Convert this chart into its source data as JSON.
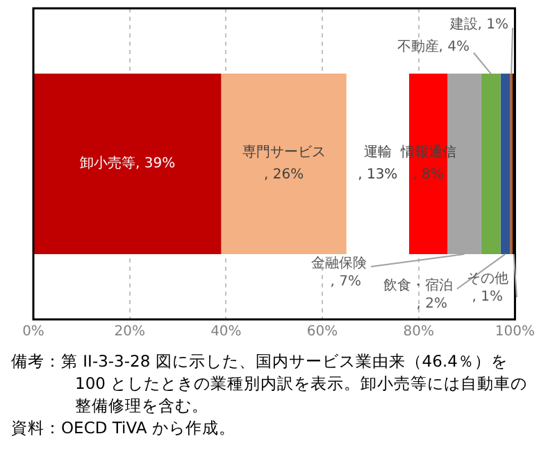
{
  "chart_data": {
    "type": "bar",
    "orientation": "horizontal",
    "stacked": true,
    "categories": [
      null
    ],
    "series": [
      {
        "name": "卸小売等",
        "color": "#c00000",
        "values": [
          39
        ],
        "value_labels": [
          ", 39%"
        ]
      },
      {
        "name": "専門サービス",
        "color": "#f4b183",
        "values": [
          26
        ],
        "value_labels": [
          ", 26%"
        ]
      },
      {
        "name": "運輸",
        "color": "#ffffff",
        "values": [
          13
        ],
        "value_labels": [
          ", 13%"
        ]
      },
      {
        "name": "情報通信",
        "color": "#ff0000",
        "values": [
          8
        ],
        "value_labels": [
          ", 8%"
        ]
      },
      {
        "name": "金融保険",
        "color": "#a5a5a5",
        "values": [
          7
        ],
        "value_labels": [
          ", 7%"
        ]
      },
      {
        "name": "不動産",
        "color": "#70ad47",
        "values": [
          4
        ],
        "value_labels": [
          ", 4%"
        ]
      },
      {
        "name": "飲食・宿泊",
        "color": "#2f5597",
        "values": [
          2
        ],
        "value_labels": [
          ", 2%"
        ]
      },
      {
        "name": "建設",
        "color": "#c55a11",
        "values": [
          0.5
        ],
        "value_labels": [
          ", 1%"
        ]
      },
      {
        "name": "その他",
        "color": "#000000",
        "values": [
          0.5
        ],
        "value_labels": [
          ", 1%"
        ]
      }
    ],
    "xlim": [
      0,
      100
    ],
    "xticks": [
      {
        "value": 0,
        "label": "0%"
      },
      {
        "value": 20,
        "label": "20%"
      },
      {
        "value": 40,
        "label": "40%"
      },
      {
        "value": 60,
        "label": "60%"
      },
      {
        "value": 80,
        "label": "80%"
      },
      {
        "value": 100,
        "label": "100%"
      }
    ],
    "grid": "x",
    "legend": false,
    "tick_labels": "x",
    "annotations": [
      "備考：第 II-3-3-28 図に示した、国内サービス業由来（46.4％）を 100 としたときの業種別内訳を表示。卸小売等には自動車の整備修理を含む。",
      "資料：OECD TiVA から作成。"
    ]
  }
}
